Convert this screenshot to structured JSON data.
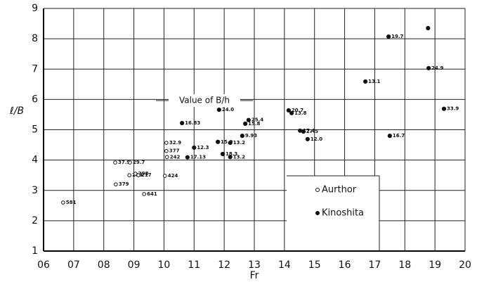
{
  "chart_data": {
    "type": "scatter",
    "xlabel": "Fr",
    "ylabel": "ℓ/B",
    "annotation": "Value of B/h",
    "xlim": [
      0.6,
      2.0
    ],
    "ylim": [
      1,
      9
    ],
    "xticks": [
      {
        "value": 0.6,
        "label": "06"
      },
      {
        "value": 0.7,
        "label": "07"
      },
      {
        "value": 0.8,
        "label": "08"
      },
      {
        "value": 0.9,
        "label": "09"
      },
      {
        "value": 1.0,
        "label": "10"
      },
      {
        "value": 1.1,
        "label": "11"
      },
      {
        "value": 1.2,
        "label": "12"
      },
      {
        "value": 1.3,
        "label": "13"
      },
      {
        "value": 1.4,
        "label": "14"
      },
      {
        "value": 1.5,
        "label": "15"
      },
      {
        "value": 1.6,
        "label": "16"
      },
      {
        "value": 1.7,
        "label": "17"
      },
      {
        "value": 1.8,
        "label": "18"
      },
      {
        "value": 1.9,
        "label": "19"
      },
      {
        "value": 2.0,
        "label": "20"
      }
    ],
    "yticks": [
      1,
      2,
      3,
      4,
      5,
      6,
      7,
      8,
      9
    ],
    "grid": true,
    "series": [
      {
        "name": "Aurthor",
        "color": "#111",
        "marker": "open",
        "x": [
          0.665,
          0.838,
          0.887,
          0.84,
          0.885,
          0.905,
          0.915,
          0.934,
          1.008,
          1.008,
          1.01,
          1.003
        ],
        "values": [
          2.6,
          3.92,
          3.92,
          3.2,
          3.5,
          3.55,
          3.5,
          2.88,
          4.57,
          4.3,
          4.1,
          3.48
        ],
        "labels": [
          "581",
          "37.9",
          "29.7",
          "379",
          "299",
          "298",
          "217",
          "641",
          "32.9",
          "377",
          "242",
          "424"
        ]
      },
      {
        "name": "Kinoshita",
        "color": "#111",
        "marker": "filled",
        "x": [
          1.06,
          1.1,
          1.078,
          1.179,
          1.22,
          1.195,
          1.22,
          1.26,
          1.281,
          1.27,
          1.183,
          1.414,
          1.424,
          1.452,
          1.463,
          1.477,
          1.669,
          1.746,
          1.877,
          1.879,
          1.93,
          1.75
        ],
        "values": [
          5.22,
          4.41,
          4.09,
          4.6,
          4.57,
          4.2,
          4.1,
          4.8,
          5.32,
          5.2,
          5.66,
          5.64,
          5.55,
          4.97,
          4.94,
          4.69,
          6.59,
          8.07,
          8.35,
          7.03,
          5.69,
          4.8
        ],
        "labels": [
          "16.83",
          "12.3",
          "17.13",
          "15.0",
          "13.2",
          "18.3",
          "13.2",
          "9.93",
          "25.4",
          "15.8",
          "24.0",
          "20.7",
          "13.8",
          "17.4",
          "27.5",
          "12.0",
          "13.1",
          "19.7",
          null,
          "24.9",
          "33.9",
          "16.7"
        ]
      }
    ]
  }
}
